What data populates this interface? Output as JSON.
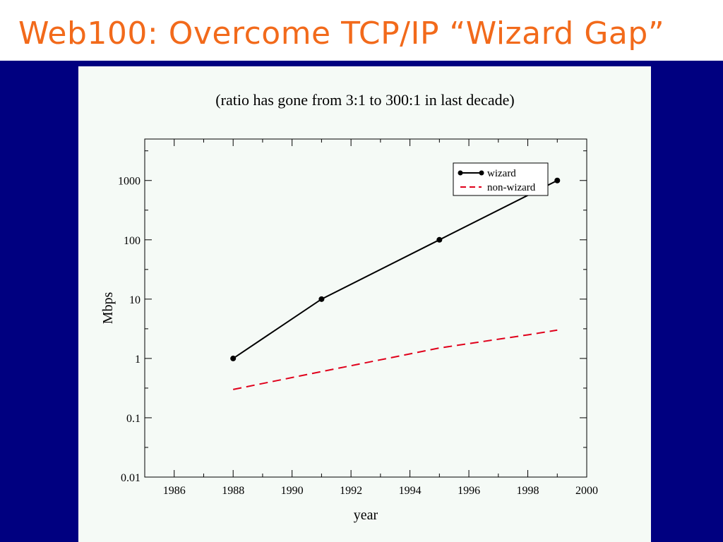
{
  "slide": {
    "title": "Web100: Overcome TCP/IP “Wizard Gap”",
    "title_color": "#f26a1b",
    "band_color": "#000080",
    "panel_color": "#f5faf6"
  },
  "chart_data": {
    "type": "line",
    "title": "(ratio has gone from 3:1 to 300:1 in last decade)",
    "xlabel": "year",
    "ylabel": "Mbps",
    "xlim": [
      1985,
      2000
    ],
    "ylim": [
      0.01,
      5000
    ],
    "yscale": "log",
    "x_ticks": [
      1986,
      1988,
      1990,
      1992,
      1994,
      1996,
      1998,
      2000
    ],
    "y_ticks": [
      0.01,
      0.1,
      1,
      10,
      100,
      1000
    ],
    "y_tick_labels": [
      "0.01",
      "0.1",
      "1",
      "10",
      "100",
      "1000"
    ],
    "legend_position": "top-right",
    "grid": false,
    "series": [
      {
        "name": "wizard",
        "color": "#000000",
        "style": "solid",
        "markers": true,
        "x": [
          1988,
          1991,
          1995,
          1999
        ],
        "y": [
          1,
          10,
          100,
          1000
        ]
      },
      {
        "name": "non-wizard",
        "color": "#e0001b",
        "style": "dashed",
        "markers": false,
        "x": [
          1988,
          1991,
          1995,
          1998,
          1999
        ],
        "y": [
          0.3,
          0.6,
          1.5,
          2.5,
          3
        ]
      }
    ]
  }
}
